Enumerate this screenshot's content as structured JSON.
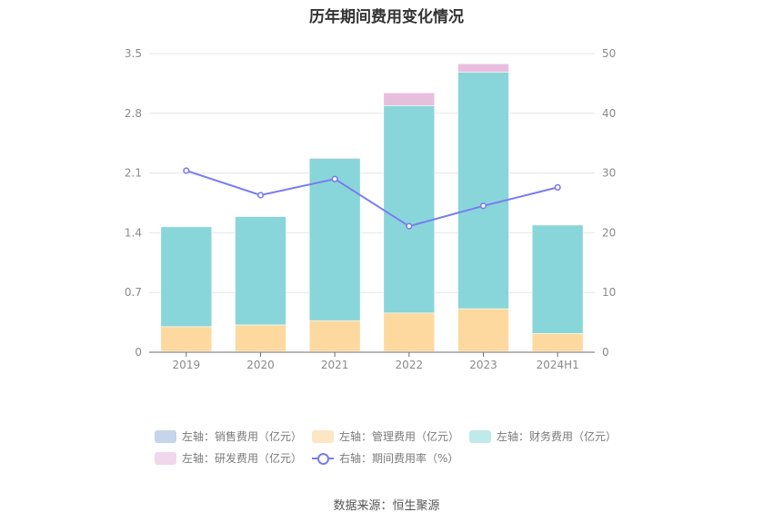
{
  "chart_data": {
    "type": "bar",
    "title": "历年期间费用变化情况",
    "categories": [
      "2019",
      "2020",
      "2021",
      "2022",
      "2023",
      "2024H1"
    ],
    "left_axis": {
      "ticks": [
        "0",
        "0.7",
        "1.4",
        "2.1",
        "2.8",
        "3.5"
      ],
      "ylim": [
        0,
        3.5
      ]
    },
    "right_axis": {
      "ticks": [
        "0",
        "10",
        "20",
        "30",
        "40",
        "50"
      ],
      "ylim": [
        0,
        50
      ]
    },
    "series": [
      {
        "name": "左轴：销售费用（亿元）",
        "axis": "left",
        "stack": true,
        "color": "#c6d4ec",
        "values": [
          0.01,
          0.01,
          0.01,
          0.01,
          0.01,
          0.01
        ]
      },
      {
        "name": "左轴：管理费用（亿元）",
        "axis": "left",
        "stack": true,
        "color": "#fdd9a0",
        "values": [
          0.29,
          0.31,
          0.36,
          0.45,
          0.5,
          0.21
        ]
      },
      {
        "name": "左轴：财务费用（亿元）",
        "axis": "left",
        "stack": true,
        "color": "#88d6d9",
        "values": [
          1.17,
          1.27,
          1.9,
          2.43,
          2.77,
          1.27
        ]
      },
      {
        "name": "左轴：研发费用（亿元）",
        "axis": "left",
        "stack": true,
        "color": "#e8bede",
        "values": [
          0.0,
          0.0,
          0.01,
          0.15,
          0.1,
          0.0
        ]
      },
      {
        "name": "右轴：期间费用率（%）",
        "axis": "right",
        "type": "line",
        "color": "#7b7bf0",
        "values": [
          30.4,
          26.3,
          29.0,
          21.1,
          24.5,
          27.6
        ]
      }
    ],
    "legend_colors": [
      "#c6d4ec",
      "#fde6c4",
      "#bfe9ea",
      "#f2d6ec"
    ],
    "legend_position": "bottom"
  },
  "source": "数据来源：恒生聚源"
}
